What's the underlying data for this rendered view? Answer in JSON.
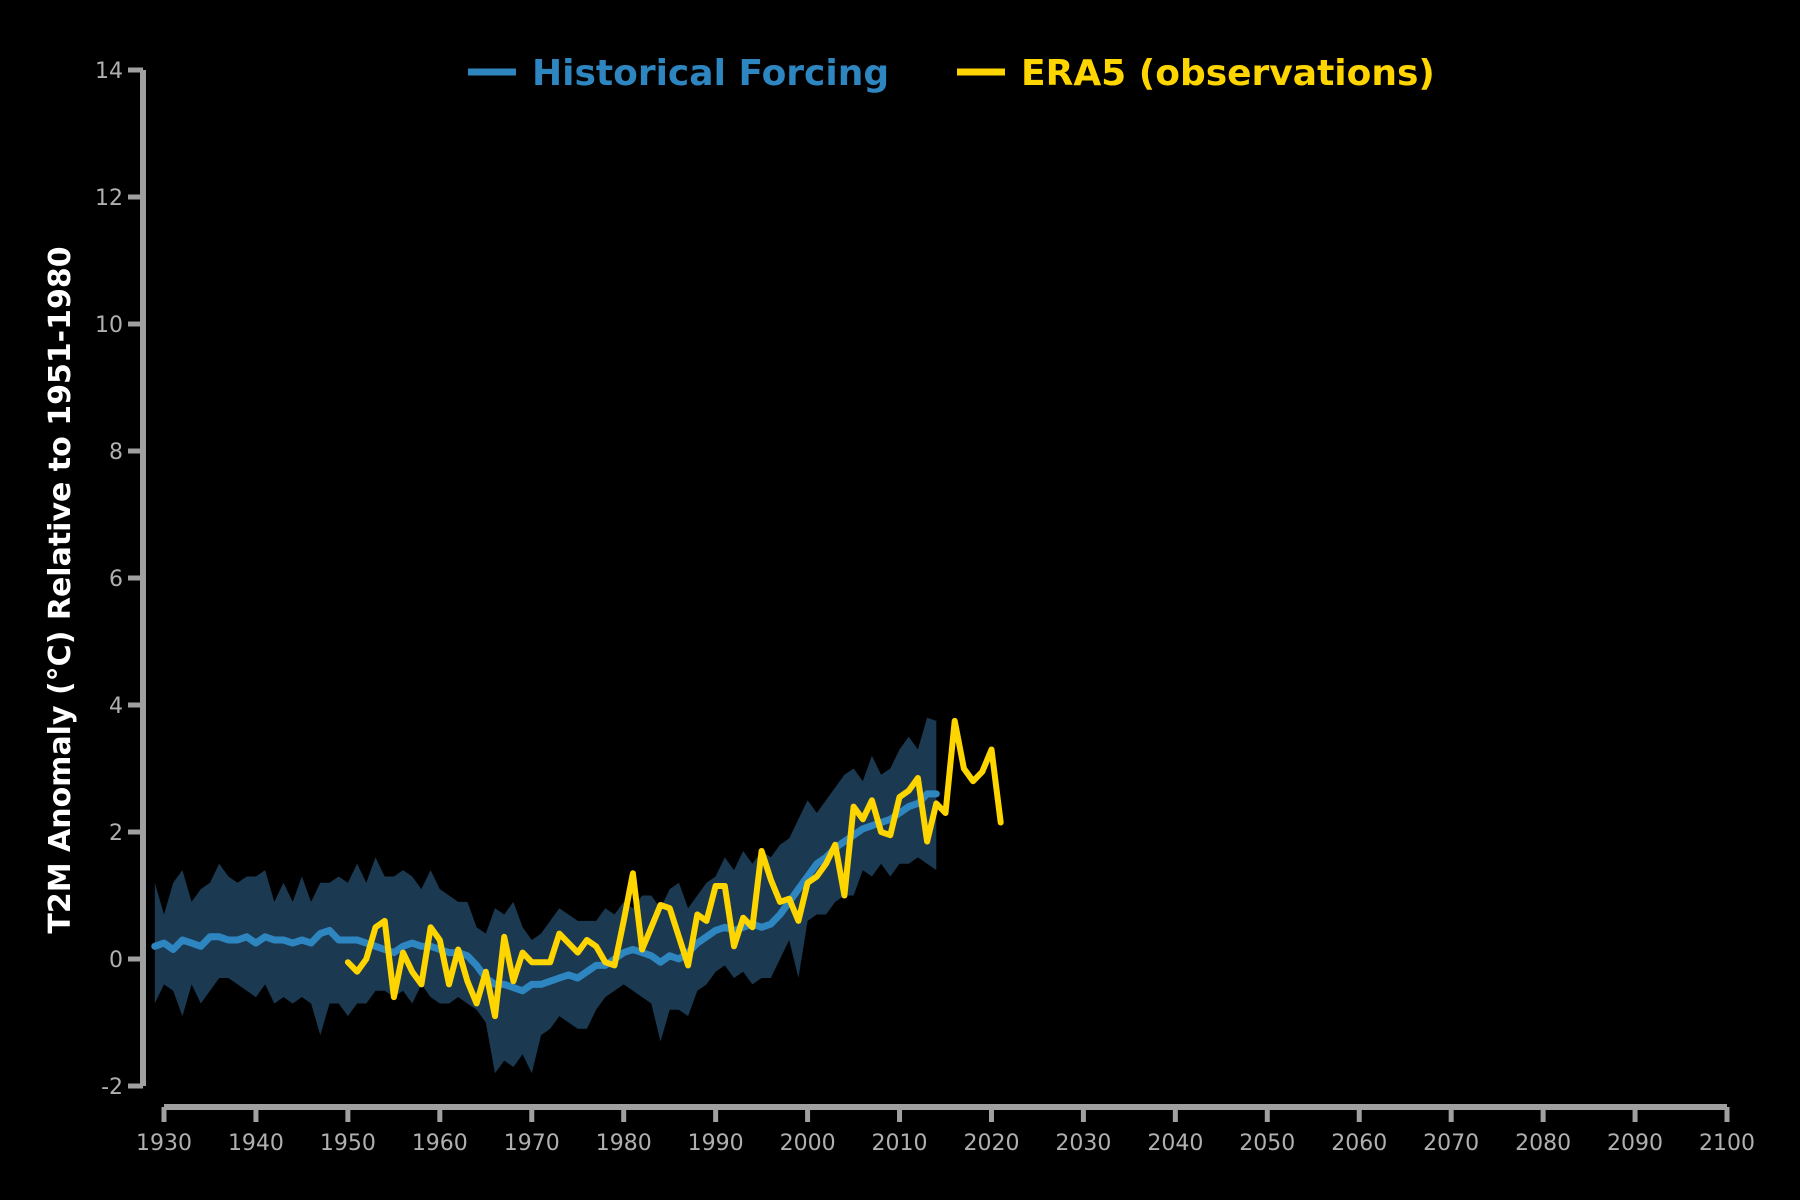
{
  "chart_data": {
    "type": "line",
    "title": "",
    "xlabel": "",
    "ylabel": "T2M Anomaly (°C) Relative to 1951-1980",
    "xlim": [
      1930,
      2100
    ],
    "ylim": [
      -2,
      14
    ],
    "xticks": [
      1930,
      1940,
      1950,
      1960,
      1970,
      1980,
      1990,
      2000,
      2010,
      2020,
      2030,
      2040,
      2050,
      2060,
      2070,
      2080,
      2090,
      2100
    ],
    "yticks": [
      -2,
      0,
      2,
      4,
      6,
      8,
      10,
      12,
      14
    ],
    "grid": false,
    "legend_position": "top-center",
    "series": [
      {
        "name": "Historical Forcing",
        "color": "#2e86c1",
        "band_color": "#1b3a52",
        "x": [
          1929,
          1930,
          1931,
          1932,
          1933,
          1934,
          1935,
          1936,
          1937,
          1938,
          1939,
          1940,
          1941,
          1942,
          1943,
          1944,
          1945,
          1946,
          1947,
          1948,
          1949,
          1950,
          1951,
          1952,
          1953,
          1954,
          1955,
          1956,
          1957,
          1958,
          1959,
          1960,
          1961,
          1962,
          1963,
          1964,
          1965,
          1966,
          1967,
          1968,
          1969,
          1970,
          1971,
          1972,
          1973,
          1974,
          1975,
          1976,
          1977,
          1978,
          1979,
          1980,
          1981,
          1982,
          1983,
          1984,
          1985,
          1986,
          1987,
          1988,
          1989,
          1990,
          1991,
          1992,
          1993,
          1994,
          1995,
          1996,
          1997,
          1998,
          1999,
          2000,
          2001,
          2002,
          2003,
          2004,
          2005,
          2006,
          2007,
          2008,
          2009,
          2010,
          2011,
          2012,
          2013,
          2014
        ],
        "values": [
          0.2,
          0.25,
          0.15,
          0.3,
          0.25,
          0.2,
          0.35,
          0.35,
          0.3,
          0.3,
          0.35,
          0.25,
          0.35,
          0.3,
          0.3,
          0.25,
          0.3,
          0.25,
          0.4,
          0.45,
          0.3,
          0.3,
          0.3,
          0.25,
          0.2,
          0.15,
          0.1,
          0.2,
          0.25,
          0.2,
          0.2,
          0.15,
          0.1,
          0.1,
          0.05,
          -0.1,
          -0.3,
          -0.4,
          -0.4,
          -0.45,
          -0.5,
          -0.4,
          -0.4,
          -0.35,
          -0.3,
          -0.25,
          -0.3,
          -0.2,
          -0.1,
          -0.1,
          0.0,
          0.1,
          0.15,
          0.1,
          0.05,
          -0.05,
          0.05,
          0.0,
          0.1,
          0.25,
          0.35,
          0.45,
          0.5,
          0.45,
          0.5,
          0.55,
          0.5,
          0.55,
          0.7,
          0.9,
          1.1,
          1.3,
          1.5,
          1.6,
          1.75,
          1.85,
          1.95,
          2.05,
          2.1,
          2.15,
          2.2,
          2.3,
          2.4,
          2.45,
          2.6,
          2.6
        ],
        "lower": [
          -0.7,
          -0.4,
          -0.5,
          -0.9,
          -0.4,
          -0.7,
          -0.5,
          -0.3,
          -0.3,
          -0.4,
          -0.5,
          -0.6,
          -0.4,
          -0.7,
          -0.6,
          -0.7,
          -0.6,
          -0.7,
          -1.2,
          -0.7,
          -0.7,
          -0.9,
          -0.7,
          -0.7,
          -0.5,
          -0.5,
          -0.6,
          -0.5,
          -0.7,
          -0.4,
          -0.6,
          -0.7,
          -0.7,
          -0.6,
          -0.7,
          -0.8,
          -1.0,
          -1.8,
          -1.6,
          -1.7,
          -1.5,
          -1.8,
          -1.2,
          -1.1,
          -0.9,
          -1.0,
          -1.1,
          -1.1,
          -0.8,
          -0.6,
          -0.5,
          -0.4,
          -0.5,
          -0.6,
          -0.7,
          -1.3,
          -0.8,
          -0.8,
          -0.9,
          -0.5,
          -0.4,
          -0.2,
          -0.1,
          -0.3,
          -0.2,
          -0.4,
          -0.3,
          -0.3,
          0.0,
          0.3,
          -0.3,
          0.6,
          0.7,
          0.7,
          0.9,
          1.0,
          1.0,
          1.4,
          1.3,
          1.5,
          1.3,
          1.5,
          1.5,
          1.6,
          1.5,
          1.4
        ],
        "upper": [
          1.2,
          0.7,
          1.2,
          1.4,
          0.9,
          1.1,
          1.2,
          1.5,
          1.3,
          1.2,
          1.3,
          1.3,
          1.4,
          0.9,
          1.2,
          0.9,
          1.3,
          0.9,
          1.2,
          1.2,
          1.3,
          1.2,
          1.5,
          1.2,
          1.6,
          1.3,
          1.3,
          1.4,
          1.3,
          1.1,
          1.4,
          1.1,
          1.0,
          0.9,
          0.9,
          0.5,
          0.4,
          0.8,
          0.7,
          0.9,
          0.5,
          0.3,
          0.4,
          0.6,
          0.8,
          0.7,
          0.6,
          0.6,
          0.6,
          0.8,
          0.7,
          0.9,
          0.8,
          1.0,
          1.0,
          0.8,
          1.1,
          1.2,
          0.8,
          1.0,
          1.2,
          1.3,
          1.6,
          1.4,
          1.7,
          1.5,
          1.7,
          1.6,
          1.8,
          1.9,
          2.2,
          2.5,
          2.3,
          2.5,
          2.7,
          2.9,
          3.0,
          2.8,
          3.2,
          2.9,
          3.0,
          3.3,
          3.5,
          3.3,
          3.8,
          3.75
        ]
      },
      {
        "name": "ERA5 (observations)",
        "color": "#ffd500",
        "x": [
          1950,
          1951,
          1952,
          1953,
          1954,
          1955,
          1956,
          1957,
          1958,
          1959,
          1960,
          1961,
          1962,
          1963,
          1964,
          1965,
          1966,
          1967,
          1968,
          1969,
          1970,
          1971,
          1972,
          1973,
          1974,
          1975,
          1976,
          1977,
          1978,
          1979,
          1980,
          1981,
          1982,
          1983,
          1984,
          1985,
          1986,
          1987,
          1988,
          1989,
          1990,
          1991,
          1992,
          1993,
          1994,
          1995,
          1996,
          1997,
          1998,
          1999,
          2000,
          2001,
          2002,
          2003,
          2004,
          2005,
          2006,
          2007,
          2008,
          2009,
          2010,
          2011,
          2012,
          2013,
          2014,
          2015,
          2016,
          2017,
          2018,
          2019,
          2020,
          2021
        ],
        "values": [
          -0.05,
          -0.2,
          0.0,
          0.5,
          0.6,
          -0.6,
          0.1,
          -0.2,
          -0.4,
          0.5,
          0.3,
          -0.4,
          0.15,
          -0.35,
          -0.7,
          -0.2,
          -0.9,
          0.35,
          -0.35,
          0.1,
          -0.05,
          -0.05,
          -0.05,
          0.4,
          0.25,
          0.1,
          0.3,
          0.2,
          -0.05,
          -0.1,
          0.6,
          1.35,
          0.15,
          0.5,
          0.85,
          0.8,
          0.35,
          -0.1,
          0.7,
          0.6,
          1.15,
          1.15,
          0.2,
          0.65,
          0.5,
          1.7,
          1.25,
          0.9,
          0.95,
          0.6,
          1.2,
          1.3,
          1.5,
          1.8,
          1.0,
          2.4,
          2.2,
          2.5,
          2.0,
          1.95,
          2.55,
          2.65,
          2.85,
          1.85,
          2.45,
          2.3,
          3.75,
          3.0,
          2.8,
          2.95,
          3.3,
          2.15
        ]
      }
    ]
  }
}
